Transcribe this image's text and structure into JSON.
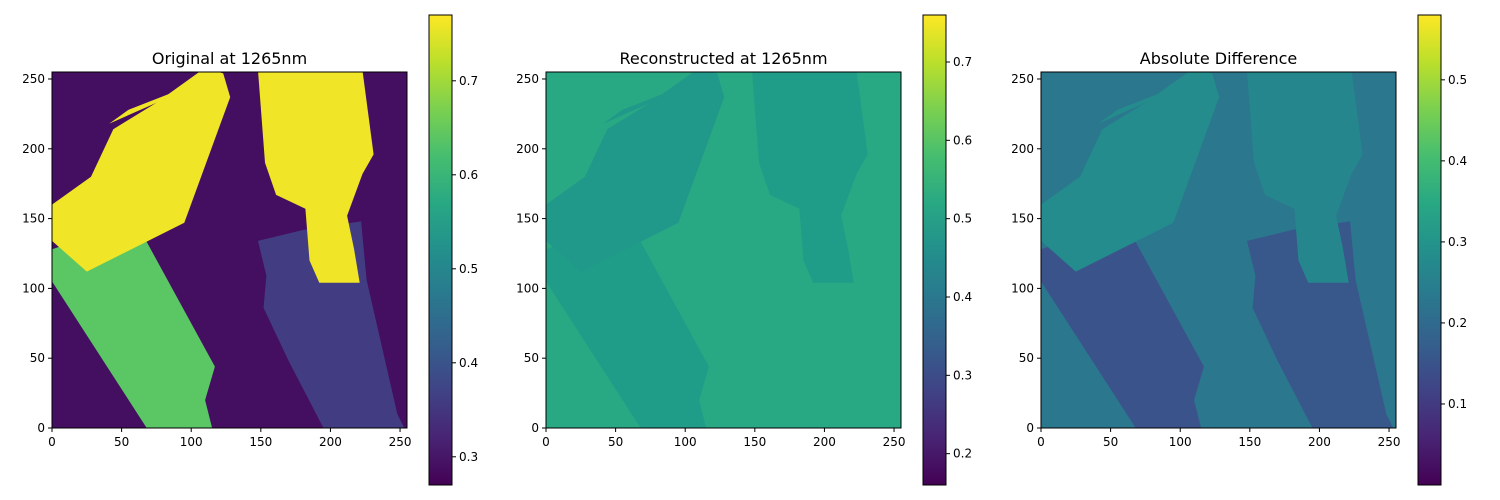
{
  "chart_data": [
    {
      "type": "heatmap",
      "title": "Original at 1265nm",
      "xlim": [
        0,
        255
      ],
      "ylim": [
        255,
        0
      ],
      "xticks": [
        0,
        50,
        100,
        150,
        200,
        250
      ],
      "yticks": [
        0,
        50,
        100,
        150,
        200,
        250
      ],
      "xtick_labels": [
        "0",
        "50",
        "100",
        "150",
        "200",
        "250"
      ],
      "ytick_labels": [
        "0",
        "50",
        "100",
        "150",
        "200",
        "250"
      ],
      "colormap": "viridis",
      "colorbar": {
        "min": 0.27,
        "max": 0.77,
        "ticks": [
          0.3,
          0.4,
          0.5,
          0.6,
          0.7
        ],
        "tick_labels": [
          "0.3",
          "0.4",
          "0.5",
          "0.6",
          "0.7"
        ]
      },
      "background_value": 0.29,
      "regions": [
        {
          "name": "green bottle",
          "value": 0.64,
          "polygon": [
            [
              68,
              0
            ],
            [
              115,
              0
            ],
            [
              110,
              20
            ],
            [
              117,
              44
            ],
            [
              60,
              148
            ],
            [
              0,
              128
            ],
            [
              0,
              105
            ]
          ]
        },
        {
          "name": "purple bottle",
          "value": 0.36,
          "polygon": [
            [
              195,
              0
            ],
            [
              253,
              0
            ],
            [
              248,
              10
            ],
            [
              226,
              106
            ],
            [
              222,
              148
            ],
            [
              181,
              142
            ],
            [
              148,
              134
            ],
            [
              154,
              109
            ],
            [
              152,
              86
            ],
            [
              170,
              48
            ]
          ]
        },
        {
          "name": "yellow bottle lower-left",
          "value": 0.76,
          "polygon": [
            [
              0,
              134
            ],
            [
              25,
              112
            ],
            [
              95,
              147
            ],
            [
              128,
              237
            ],
            [
              123,
              254
            ],
            [
              110,
              258
            ],
            [
              75,
              233
            ],
            [
              44,
              214
            ],
            [
              28,
              180
            ],
            [
              0,
              160
            ]
          ]
        },
        {
          "name": "yellow sliver",
          "value": 0.76,
          "polygon": [
            [
              41,
              218
            ],
            [
              82,
              236
            ],
            [
              86,
              240
            ],
            [
              55,
              228
            ]
          ]
        },
        {
          "name": "yellow bottle right",
          "value": 0.76,
          "polygon": [
            [
              192,
              104
            ],
            [
              221,
              104
            ],
            [
              217,
              128
            ],
            [
              212,
              152
            ],
            [
              223,
              182
            ],
            [
              231,
              196
            ],
            [
              223,
              256
            ],
            [
              148,
              256
            ],
            [
              153,
              190
            ],
            [
              161,
              167
            ],
            [
              182,
              157
            ],
            [
              185,
              120
            ]
          ]
        }
      ]
    },
    {
      "type": "heatmap",
      "title": "Reconstructed at 1265nm",
      "xlim": [
        0,
        255
      ],
      "ylim": [
        255,
        0
      ],
      "xticks": [
        0,
        50,
        100,
        150,
        200,
        250
      ],
      "yticks": [
        0,
        50,
        100,
        150,
        200,
        250
      ],
      "xtick_labels": [
        "0",
        "50",
        "100",
        "150",
        "200",
        "250"
      ],
      "ytick_labels": [
        "0",
        "50",
        "100",
        "150",
        "200",
        "250"
      ],
      "colormap": "viridis",
      "colorbar": {
        "min": 0.16,
        "max": 0.76,
        "ticks": [
          0.2,
          0.3,
          0.4,
          0.5,
          0.6,
          0.7
        ],
        "tick_labels": [
          "0.2",
          "0.3",
          "0.4",
          "0.5",
          "0.6",
          "0.7"
        ]
      },
      "background_value": 0.52,
      "regions": [
        {
          "name": "green bottle",
          "value": 0.49,
          "polygon": [
            [
              68,
              0
            ],
            [
              115,
              0
            ],
            [
              110,
              20
            ],
            [
              117,
              44
            ],
            [
              60,
              148
            ],
            [
              0,
              128
            ],
            [
              0,
              105
            ]
          ]
        },
        {
          "name": "purple bottle",
          "value": 0.52,
          "polygon": [
            [
              195,
              0
            ],
            [
              253,
              0
            ],
            [
              248,
              10
            ],
            [
              226,
              106
            ],
            [
              222,
              148
            ],
            [
              181,
              142
            ],
            [
              148,
              134
            ],
            [
              154,
              109
            ],
            [
              152,
              86
            ],
            [
              170,
              48
            ]
          ]
        },
        {
          "name": "yellow bottle lower-left",
          "value": 0.48,
          "polygon": [
            [
              0,
              134
            ],
            [
              25,
              112
            ],
            [
              95,
              147
            ],
            [
              128,
              237
            ],
            [
              123,
              254
            ],
            [
              110,
              258
            ],
            [
              75,
              233
            ],
            [
              44,
              214
            ],
            [
              28,
              180
            ],
            [
              0,
              160
            ]
          ]
        },
        {
          "name": "yellow sliver",
          "value": 0.48,
          "polygon": [
            [
              41,
              218
            ],
            [
              82,
              236
            ],
            [
              86,
              240
            ],
            [
              55,
              228
            ]
          ]
        },
        {
          "name": "yellow bottle right",
          "value": 0.49,
          "polygon": [
            [
              192,
              104
            ],
            [
              221,
              104
            ],
            [
              217,
              128
            ],
            [
              212,
              152
            ],
            [
              223,
              182
            ],
            [
              231,
              196
            ],
            [
              223,
              256
            ],
            [
              148,
              256
            ],
            [
              153,
              190
            ],
            [
              161,
              167
            ],
            [
              182,
              157
            ],
            [
              185,
              120
            ]
          ]
        }
      ]
    },
    {
      "type": "heatmap",
      "title": "Absolute Difference",
      "xlim": [
        0,
        255
      ],
      "ylim": [
        255,
        0
      ],
      "xticks": [
        0,
        50,
        100,
        150,
        200,
        250
      ],
      "yticks": [
        0,
        50,
        100,
        150,
        200,
        250
      ],
      "xtick_labels": [
        "0",
        "50",
        "100",
        "150",
        "200",
        "250"
      ],
      "ytick_labels": [
        "0",
        "50",
        "100",
        "150",
        "200",
        "250"
      ],
      "colormap": "viridis",
      "colorbar": {
        "min": 0.0,
        "max": 0.58,
        "ticks": [
          0.1,
          0.2,
          0.3,
          0.4,
          0.5
        ],
        "tick_labels": [
          "0.1",
          "0.2",
          "0.3",
          "0.4",
          "0.5"
        ]
      },
      "background_value": 0.23,
      "regions": [
        {
          "name": "green bottle",
          "value": 0.15,
          "polygon": [
            [
              68,
              0
            ],
            [
              115,
              0
            ],
            [
              110,
              20
            ],
            [
              117,
              44
            ],
            [
              60,
              148
            ],
            [
              0,
              128
            ],
            [
              0,
              105
            ]
          ]
        },
        {
          "name": "purple bottle",
          "value": 0.16,
          "polygon": [
            [
              195,
              0
            ],
            [
              253,
              0
            ],
            [
              248,
              10
            ],
            [
              226,
              106
            ],
            [
              222,
              148
            ],
            [
              181,
              142
            ],
            [
              148,
              134
            ],
            [
              154,
              109
            ],
            [
              152,
              86
            ],
            [
              170,
              48
            ]
          ]
        },
        {
          "name": "yellow bottle lower-left",
          "value": 0.28,
          "polygon": [
            [
              0,
              134
            ],
            [
              25,
              112
            ],
            [
              95,
              147
            ],
            [
              128,
              237
            ],
            [
              123,
              254
            ],
            [
              110,
              258
            ],
            [
              75,
              233
            ],
            [
              44,
              214
            ],
            [
              28,
              180
            ],
            [
              0,
              160
            ]
          ]
        },
        {
          "name": "yellow sliver",
          "value": 0.28,
          "polygon": [
            [
              41,
              218
            ],
            [
              82,
              236
            ],
            [
              86,
              240
            ],
            [
              55,
              228
            ]
          ]
        },
        {
          "name": "yellow bottle right",
          "value": 0.27,
          "polygon": [
            [
              192,
              104
            ],
            [
              221,
              104
            ],
            [
              217,
              128
            ],
            [
              212,
              152
            ],
            [
              223,
              182
            ],
            [
              231,
              196
            ],
            [
              223,
              256
            ],
            [
              148,
              256
            ],
            [
              153,
              190
            ],
            [
              161,
              167
            ],
            [
              182,
              157
            ],
            [
              185,
              120
            ]
          ]
        }
      ]
    }
  ]
}
